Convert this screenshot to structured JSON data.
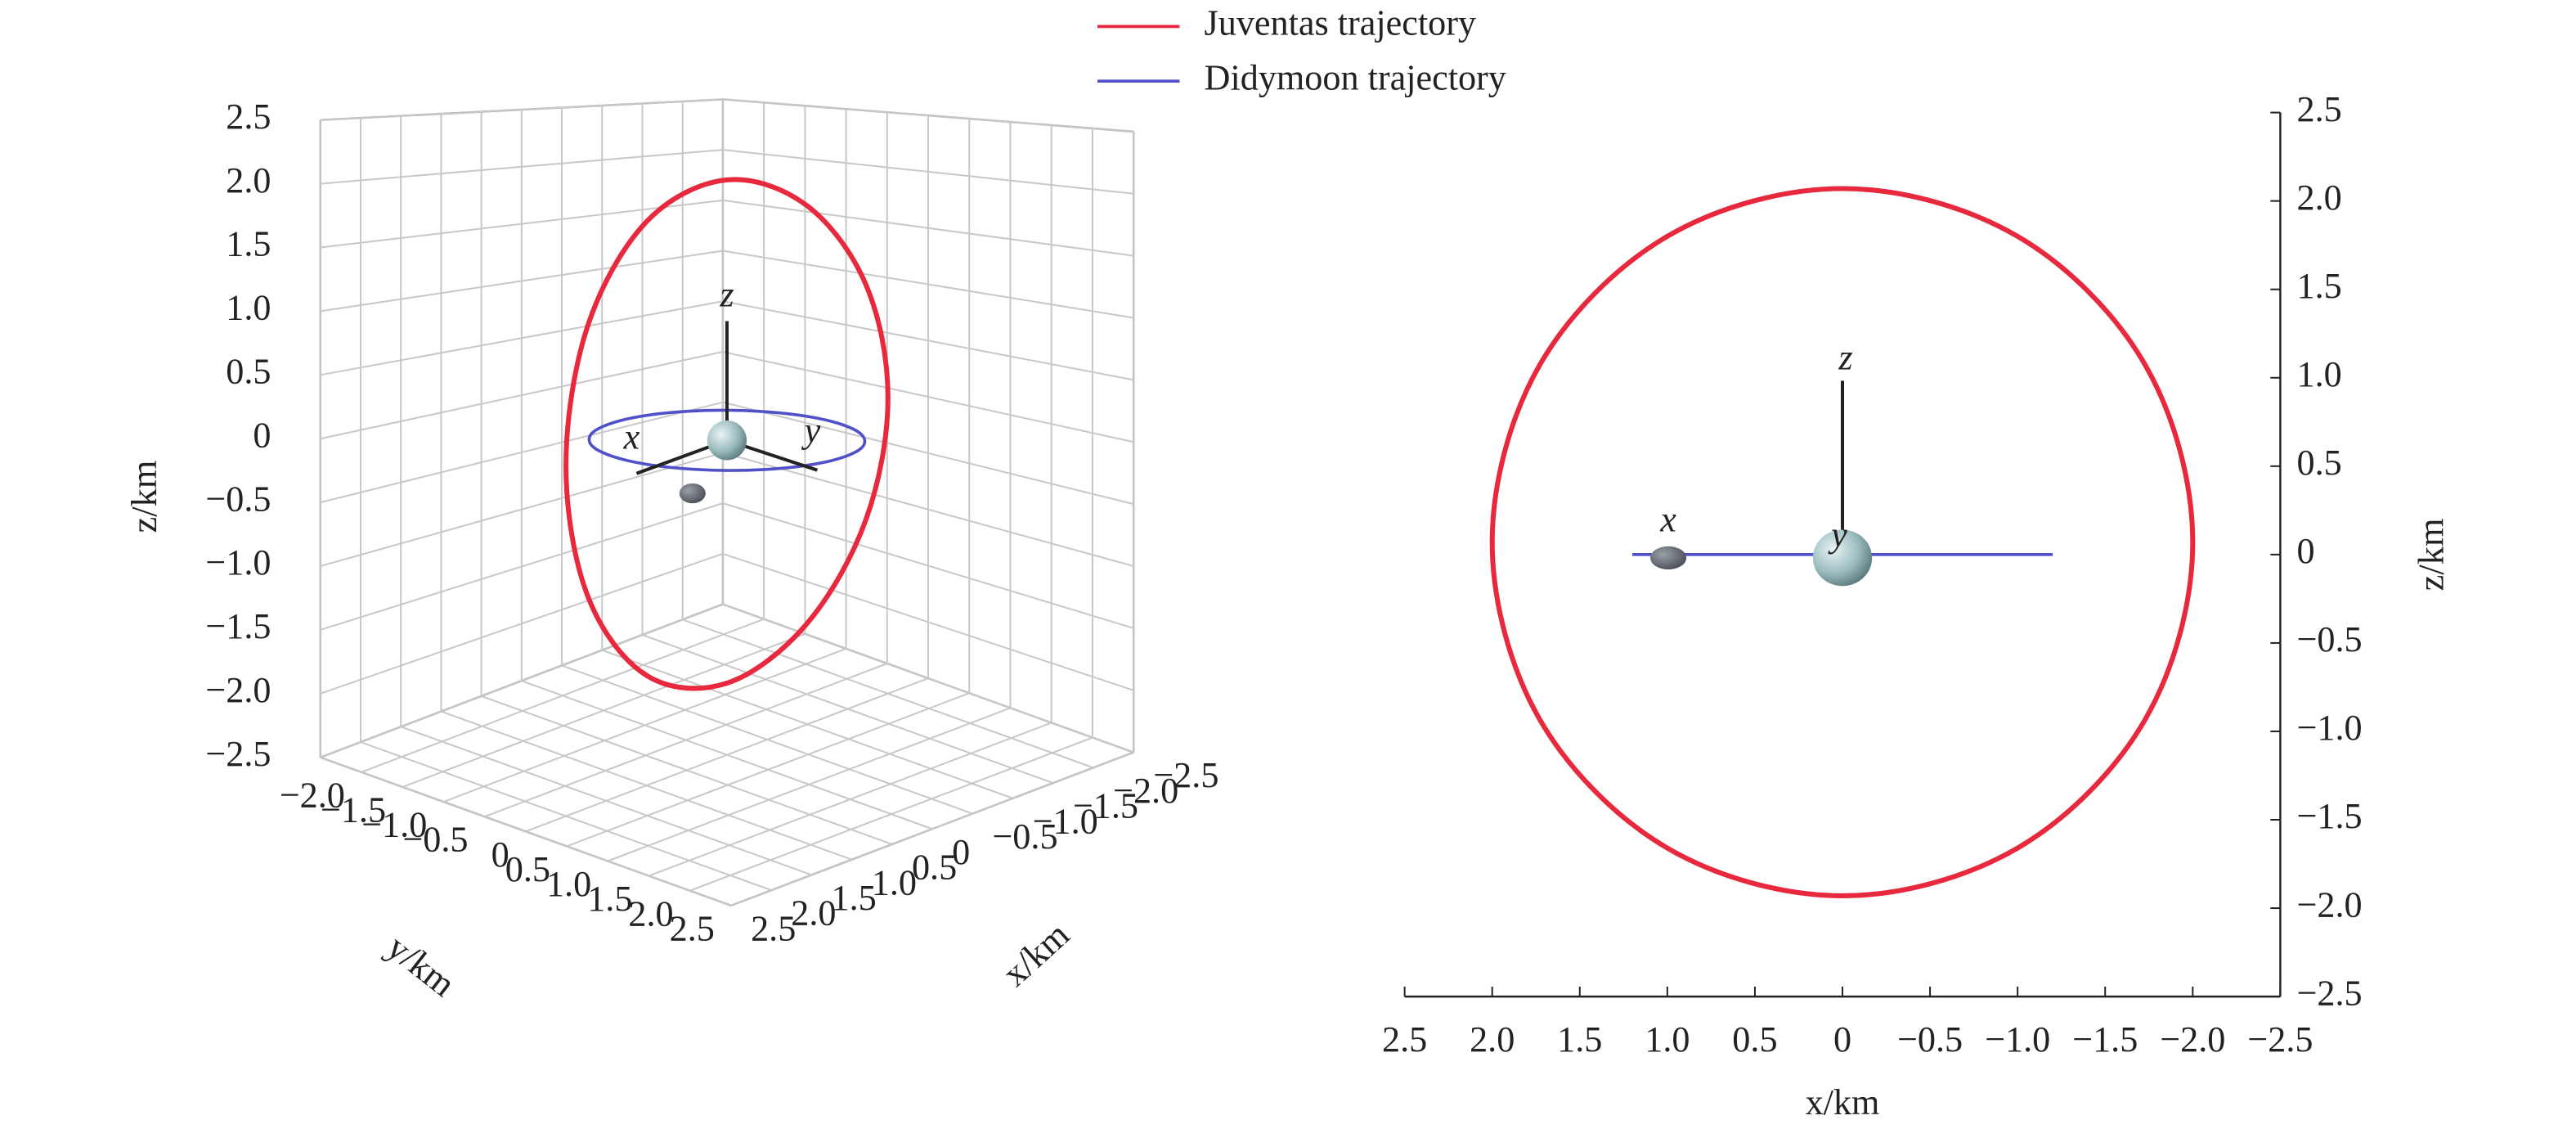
{
  "chart_data": [
    {
      "type": "line3d",
      "xlabel": "x/km",
      "ylabel": "y/km",
      "zlabel": "z/km",
      "xlim": [
        -2.5,
        2.5
      ],
      "ylim": [
        -2.5,
        2.5
      ],
      "zlim": [
        -2.5,
        2.5
      ],
      "xticks": [
        {
          "value": -2.5,
          "label": "−2.5"
        },
        {
          "value": -2,
          "label": "−2.0"
        },
        {
          "value": -1.5,
          "label": "−1.5"
        },
        {
          "value": -1,
          "label": "−1.0"
        },
        {
          "value": -0.5,
          "label": "−0.5"
        },
        0,
        0.5,
        {
          "value": 1,
          "label": "1.0"
        },
        1.5,
        {
          "value": 2,
          "label": "2.0"
        },
        2.5
      ],
      "yticks": [
        {
          "value": -2,
          "label": "−2.0"
        },
        {
          "value": -1.5,
          "label": "−1.5"
        },
        {
          "value": -1,
          "label": "−1.0"
        },
        {
          "value": -0.5,
          "label": "−0.5"
        },
        0,
        0.5,
        {
          "value": 1,
          "label": "1.0"
        },
        1.5,
        {
          "value": 2,
          "label": "2.0"
        },
        2.5
      ],
      "zticks": [
        {
          "value": -2.5,
          "label": "−2.5"
        },
        {
          "value": -2,
          "label": "−2.0"
        },
        {
          "value": -1.5,
          "label": "−1.5"
        },
        {
          "value": -1,
          "label": "−1.0"
        },
        {
          "value": -0.5,
          "label": "−0.5"
        },
        0,
        0.5,
        {
          "value": 1,
          "label": "1.0"
        },
        1.5,
        {
          "value": 2,
          "label": "2.0"
        },
        2.5
      ],
      "grid": true,
      "triad": [
        "x",
        "y",
        "z"
      ],
      "series": [
        {
          "name": "Juventas trajectory",
          "color": "#e8283c",
          "x": [
            2.0,
            1.73,
            1.0,
            0,
            -1.0,
            -1.73,
            -2.0,
            -1.73,
            -1.0,
            0,
            1.0,
            1.73,
            2.0
          ],
          "y": [
            0,
            0,
            0,
            0,
            0,
            0,
            0,
            0,
            0,
            0,
            0,
            0,
            0
          ],
          "z": [
            0.07,
            1.07,
            1.8,
            2.07,
            1.8,
            1.07,
            0.07,
            -0.93,
            -1.66,
            -1.93,
            -1.66,
            -0.93,
            0.07
          ]
        },
        {
          "name": "Didymoon trajectory",
          "color": "#5050c8",
          "x": [
            1.2,
            1.04,
            0.6,
            0,
            -0.6,
            -1.04,
            -1.2,
            -1.04,
            -0.6,
            0,
            0.6,
            1.04,
            1.2
          ],
          "y": [
            0,
            0.6,
            1.04,
            1.2,
            1.04,
            0.6,
            0,
            -0.6,
            -1.04,
            -1.2,
            -1.04,
            -0.6,
            0
          ],
          "z": [
            0,
            0,
            0,
            0,
            0,
            0,
            0,
            0,
            0,
            0,
            0,
            0,
            0
          ]
        }
      ]
    },
    {
      "type": "line",
      "xlabel": "x/km",
      "ylabel": "z/km",
      "xlim": [
        2.5,
        -2.5
      ],
      "ylim": [
        -2.5,
        2.5
      ],
      "xticks": [
        2.5,
        {
          "value": 2,
          "label": "2.0"
        },
        1.5,
        {
          "value": 1,
          "label": "1.0"
        },
        0.5,
        0,
        {
          "value": -0.5,
          "label": "−0.5"
        },
        {
          "value": -1,
          "label": "−1.0"
        },
        {
          "value": -1.5,
          "label": "−1.5"
        },
        {
          "value": -2,
          "label": "−2.0"
        },
        {
          "value": -2.5,
          "label": "−2.5"
        }
      ],
      "yticks": [
        {
          "value": -2.5,
          "label": "−2.5"
        },
        {
          "value": -2,
          "label": "−2.0"
        },
        {
          "value": -1.5,
          "label": "−1.5"
        },
        {
          "value": -1,
          "label": "−1.0"
        },
        {
          "value": -0.5,
          "label": "−0.5"
        },
        0,
        0.5,
        {
          "value": 1,
          "label": "1.0"
        },
        1.5,
        {
          "value": 2,
          "label": "2.0"
        },
        2.5
      ],
      "triad": [
        "x",
        "y",
        "z"
      ],
      "series": [
        {
          "color": "#e8283c",
          "x": [
            2.0,
            1.73,
            1.0,
            0,
            -1.0,
            -1.73,
            -2.0,
            -1.73,
            -1.0,
            0,
            1.0,
            1.73,
            2.0
          ],
          "values": [
            0.07,
            1.07,
            1.8,
            2.07,
            1.8,
            1.07,
            0.07,
            -0.93,
            -1.66,
            -1.93,
            -1.66,
            -0.93,
            0.07
          ]
        },
        {
          "color": "#5050c8",
          "x": [
            1.2,
            -1.2
          ],
          "values": [
            0,
            0
          ]
        }
      ]
    }
  ]
}
